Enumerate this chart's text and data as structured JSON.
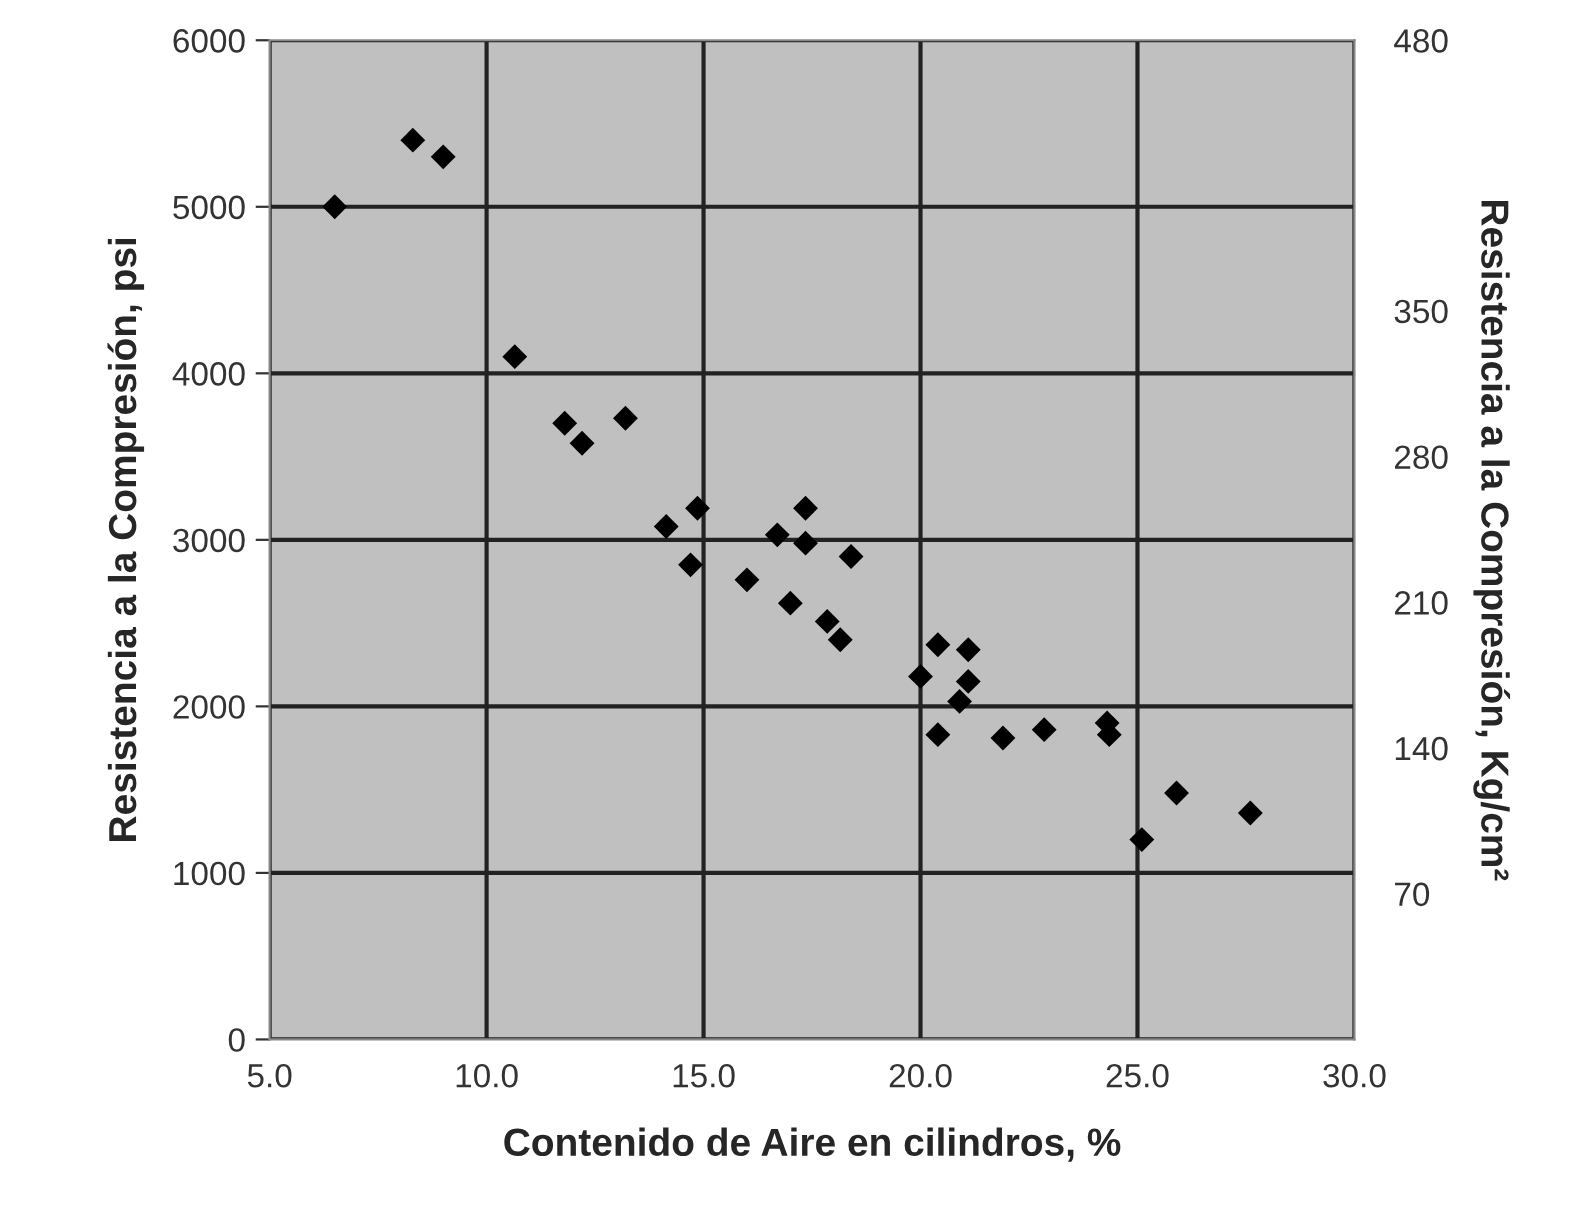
{
  "chart_data": {
    "type": "scatter",
    "xlabel": "Contenido de Aire en cilindros, %",
    "ylabel": "Resistencia a la Compresión, psi",
    "y2label": "Resistencia a la Compresión, Kg/cm²",
    "x": [
      6.5,
      8.3,
      9.0,
      10.65,
      11.8,
      12.2,
      13.2,
      14.14,
      14.86,
      14.7,
      16.0,
      16.7,
      17.35,
      17.35,
      18.4,
      17.0,
      17.85,
      18.15,
      20.4,
      21.1,
      20.0,
      21.1,
      20.9,
      20.4,
      21.9,
      22.85,
      24.3,
      24.35,
      25.9,
      27.6,
      25.1
    ],
    "series": [
      {
        "color": "#000000",
        "values": [
          5000,
          5400,
          5300,
          4100,
          3700,
          3580,
          3730,
          3080,
          3190,
          2850,
          2760,
          3030,
          3190,
          2980,
          2900,
          2620,
          2510,
          2400,
          2370,
          2340,
          2180,
          2150,
          2030,
          1830,
          1810,
          1860,
          1900,
          1830,
          1480,
          1360,
          1200
        ]
      }
    ],
    "marker": "diamond",
    "xlim": [
      5.0,
      30.0
    ],
    "xticks": [
      {
        "value": 5,
        "label": "5.0"
      },
      {
        "value": 10,
        "label": "10.0"
      },
      {
        "value": 15,
        "label": "15.0"
      },
      {
        "value": 20,
        "label": "20.0"
      },
      {
        "value": 25,
        "label": "25.0"
      },
      {
        "value": 30,
        "label": "30.0"
      }
    ],
    "ylim": [
      0,
      6000
    ],
    "yticks": [
      0,
      1000,
      2000,
      3000,
      4000,
      5000,
      6000
    ],
    "y2lim": [
      0,
      480
    ],
    "y2ticks": [
      70,
      140,
      210,
      280,
      350,
      480
    ],
    "grid": true
  }
}
